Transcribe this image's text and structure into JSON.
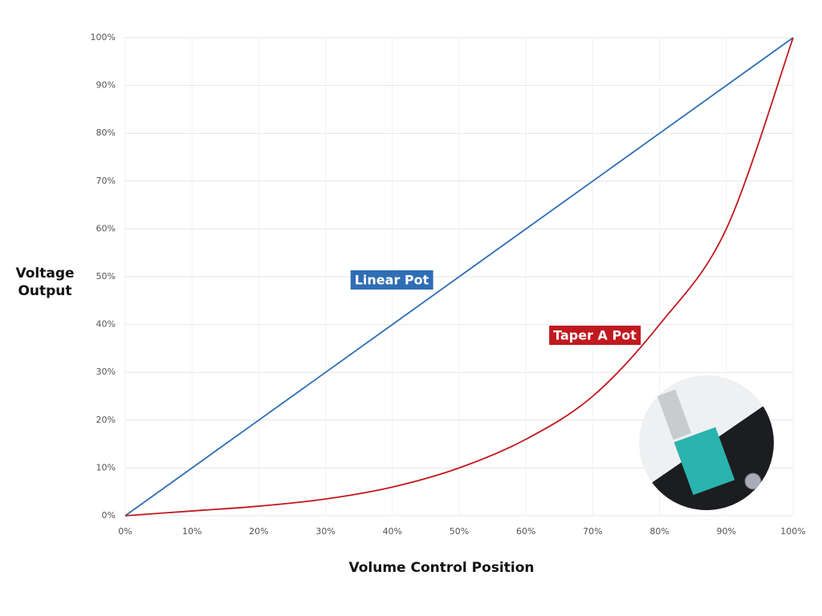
{
  "chart_data": {
    "type": "line",
    "x_label": "Volume Control Position",
    "y_label": "Voltage Output",
    "x": [
      0,
      10,
      20,
      30,
      40,
      50,
      60,
      70,
      80,
      90,
      100
    ],
    "series": [
      {
        "name": "Linear Pot",
        "color": "#2f6db5",
        "values": [
          0,
          10,
          20,
          30,
          40,
          50,
          60,
          70,
          80,
          90,
          100
        ]
      },
      {
        "name": "Taper A Pot",
        "color": "#c0191f",
        "values": [
          0,
          1,
          2,
          3.5,
          6,
          10,
          16,
          25,
          40,
          60,
          100
        ]
      }
    ],
    "xlim": [
      0,
      100
    ],
    "ylim": [
      0,
      100
    ],
    "xticks": [
      {
        "value": 0,
        "label": "0%"
      },
      {
        "value": 10,
        "label": "10%"
      },
      {
        "value": 20,
        "label": "20%"
      },
      {
        "value": 30,
        "label": "30%"
      },
      {
        "value": 40,
        "label": "40%"
      },
      {
        "value": 50,
        "label": "50%"
      },
      {
        "value": 60,
        "label": "60%"
      },
      {
        "value": 70,
        "label": "70%"
      },
      {
        "value": 80,
        "label": "80%"
      },
      {
        "value": 90,
        "label": "90%"
      },
      {
        "value": 100,
        "label": "100%"
      }
    ],
    "yticks": [
      {
        "value": 0,
        "label": "0%"
      },
      {
        "value": 10,
        "label": "10%"
      },
      {
        "value": 20,
        "label": "20%"
      },
      {
        "value": 30,
        "label": "30%"
      },
      {
        "value": 40,
        "label": "40%"
      },
      {
        "value": 50,
        "label": "50%"
      },
      {
        "value": 60,
        "label": "60%"
      },
      {
        "value": 70,
        "label": "70%"
      },
      {
        "value": 80,
        "label": "80%"
      },
      {
        "value": 90,
        "label": "90%"
      },
      {
        "value": 100,
        "label": "100%"
      }
    ],
    "grid": true
  }
}
